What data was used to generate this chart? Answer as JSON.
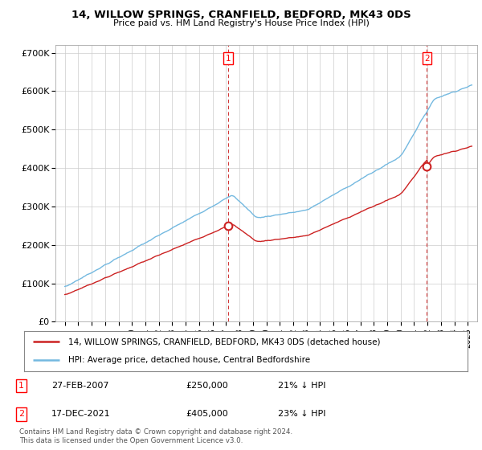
{
  "title": "14, WILLOW SPRINGS, CRANFIELD, BEDFORD, MK43 0DS",
  "subtitle": "Price paid vs. HM Land Registry's House Price Index (HPI)",
  "ytick_labels": [
    "£0",
    "£100K",
    "£200K",
    "£300K",
    "£400K",
    "£500K",
    "£600K",
    "£700K"
  ],
  "yticks": [
    0,
    100000,
    200000,
    300000,
    400000,
    500000,
    600000,
    700000
  ],
  "hpi_color": "#74b9e0",
  "price_color": "#cc2222",
  "sale1_date": 2007.15,
  "sale1_price": 250000,
  "sale2_date": 2021.96,
  "sale2_price": 405000,
  "legend_line1": "14, WILLOW SPRINGS, CRANFIELD, BEDFORD, MK43 0DS (detached house)",
  "legend_line2": "HPI: Average price, detached house, Central Bedfordshire",
  "table_row1": [
    "1",
    "27-FEB-2007",
    "£250,000",
    "21% ↓ HPI"
  ],
  "table_row2": [
    "2",
    "17-DEC-2021",
    "£405,000",
    "23% ↓ HPI"
  ],
  "footnote": "Contains HM Land Registry data © Crown copyright and database right 2024.\nThis data is licensed under the Open Government Licence v3.0.",
  "background_color": "#ffffff",
  "grid_color": "#cccccc"
}
